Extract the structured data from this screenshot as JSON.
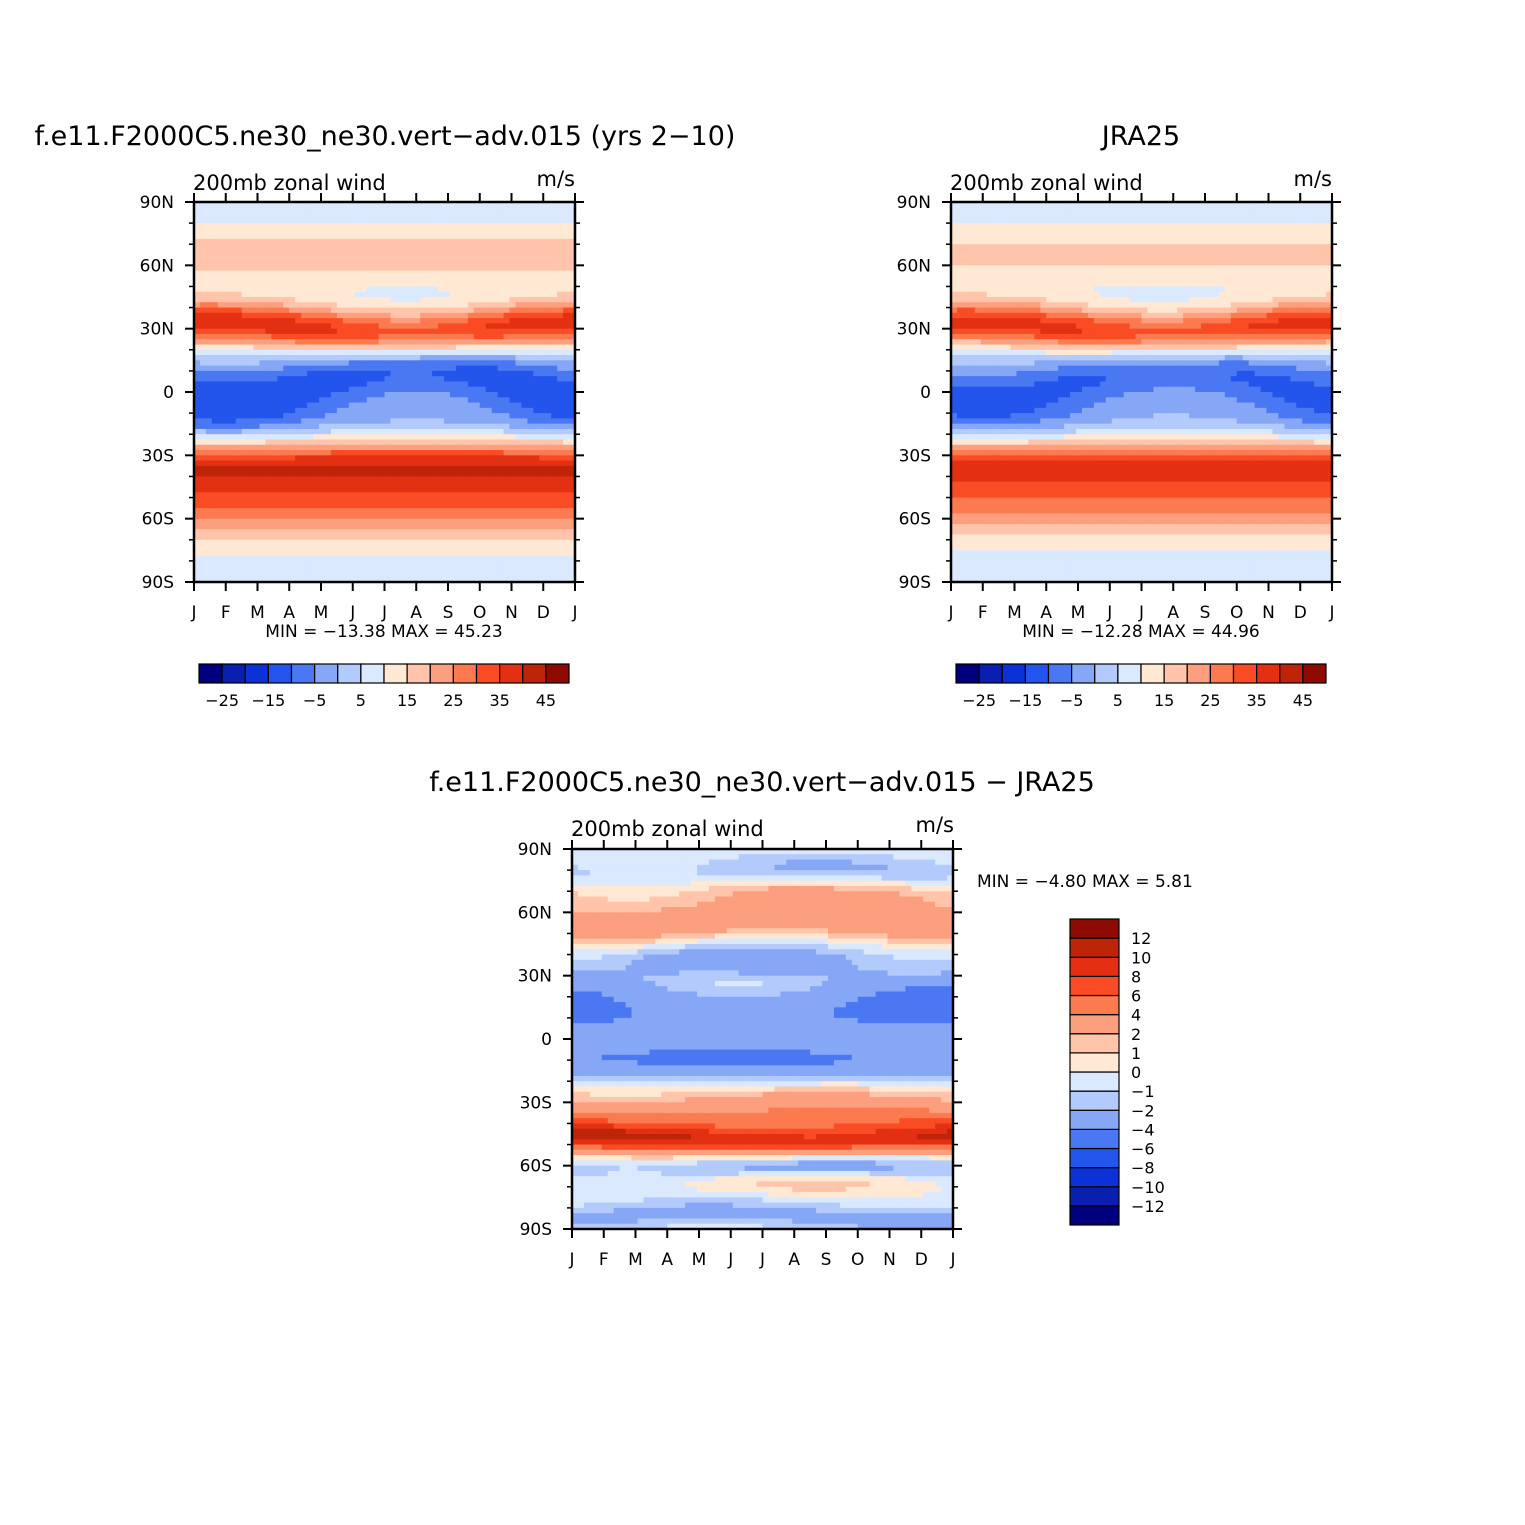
{
  "chart_data": [
    {
      "type": "heatmap",
      "title": "f.e11.F2000C5.ne30_ne30.vert−adv.015 (yrs 2−10)",
      "left_label": "200mb zonal wind",
      "right_label": "m/s",
      "x_ticks": [
        "J",
        "F",
        "M",
        "A",
        "M",
        "J",
        "J",
        "A",
        "S",
        "O",
        "N",
        "D",
        "J"
      ],
      "y_ticks": [
        "90N",
        "60N",
        "30N",
        "0",
        "30S",
        "60S",
        "90S"
      ],
      "ylim": [
        -90,
        90
      ],
      "min_max_text": "MIN = −13.38 MAX =    45.23",
      "min": -13.38,
      "max": 45.23,
      "colorbar": {
        "orientation": "horizontal",
        "labels": [
          "−25",
          "−15",
          "−5",
          "5",
          "15",
          "25",
          "35",
          "45"
        ],
        "levels": [
          -30,
          -25,
          -20,
          -15,
          -10,
          -5,
          0,
          5,
          10,
          15,
          20,
          25,
          30,
          35,
          40,
          45
        ],
        "colors": [
          "#00007f",
          "#0a1fb0",
          "#0a32d6",
          "#2354ec",
          "#4a78f2",
          "#86a6f6",
          "#b2cafc",
          "#dbe9ff",
          "#ffe8d4",
          "#ffc4aa",
          "#fc9f7e",
          "#fb7a4f",
          "#f94c24",
          "#e43012",
          "#bd2408",
          "#8f0a00"
        ]
      },
      "components": [
        {
          "amp": 33,
          "lat_center": 30,
          "lat_width": 11,
          "month_center": 0.5,
          "month_amp": 3
        },
        {
          "amp": 32,
          "lat_center": -35,
          "lat_width": 13
        },
        {
          "amp": 22,
          "lat_center": -55,
          "lat_width": 14
        },
        {
          "amp": -18,
          "lat_center": 5,
          "lat_width": 16,
          "month_center": 7,
          "month_amp": 8
        },
        {
          "amp": -6,
          "lat_center": -15,
          "lat_width": 10
        },
        {
          "amp": 12,
          "lat_center": 65,
          "lat_width": 16
        },
        {
          "amp": 3,
          "lat_center": -75,
          "lat_width": 10
        }
      ]
    },
    {
      "type": "heatmap",
      "title": "JRA25",
      "left_label": "200mb zonal wind",
      "right_label": "m/s",
      "x_ticks": [
        "J",
        "F",
        "M",
        "A",
        "M",
        "J",
        "J",
        "A",
        "S",
        "O",
        "N",
        "D",
        "J"
      ],
      "y_ticks": [
        "90N",
        "60N",
        "30N",
        "0",
        "30S",
        "60S",
        "90S"
      ],
      "ylim": [
        -90,
        90
      ],
      "min_max_text": "MIN = −12.28 MAX =    44.96",
      "min": -12.28,
      "max": 44.96,
      "colorbar": {
        "orientation": "horizontal",
        "labels": [
          "−25",
          "−15",
          "−5",
          "5",
          "15",
          "25",
          "35",
          "45"
        ],
        "levels": [
          -30,
          -25,
          -20,
          -15,
          -10,
          -5,
          0,
          5,
          10,
          15,
          20,
          25,
          30,
          35,
          40,
          45
        ],
        "colors": [
          "#00007f",
          "#0a1fb0",
          "#0a32d6",
          "#2354ec",
          "#4a78f2",
          "#86a6f6",
          "#b2cafc",
          "#dbe9ff",
          "#ffe8d4",
          "#ffc4aa",
          "#fc9f7e",
          "#fb7a4f",
          "#f94c24",
          "#e43012",
          "#bd2408",
          "#8f0a00"
        ]
      },
      "components": [
        {
          "amp": 32,
          "lat_center": 30,
          "lat_width": 11,
          "month_center": 0.5,
          "month_amp": 3
        },
        {
          "amp": 30,
          "lat_center": -35,
          "lat_width": 13
        },
        {
          "amp": 20,
          "lat_center": -55,
          "lat_width": 14
        },
        {
          "amp": -16,
          "lat_center": 5,
          "lat_width": 16,
          "month_center": 7,
          "month_amp": 8
        },
        {
          "amp": -5,
          "lat_center": -15,
          "lat_width": 10
        },
        {
          "amp": 11,
          "lat_center": 65,
          "lat_width": 16
        },
        {
          "amp": 3,
          "lat_center": -75,
          "lat_width": 10
        }
      ]
    },
    {
      "type": "heatmap",
      "title": "f.e11.F2000C5.ne30_ne30.vert−adv.015 − JRA25",
      "left_label": "200mb zonal wind",
      "right_label": "m/s",
      "x_ticks": [
        "J",
        "F",
        "M",
        "A",
        "M",
        "J",
        "J",
        "A",
        "S",
        "O",
        "N",
        "D",
        "J"
      ],
      "y_ticks": [
        "90N",
        "60N",
        "30N",
        "0",
        "30S",
        "60S",
        "90S"
      ],
      "ylim": [
        -90,
        90
      ],
      "min_max_text": "MIN =   −4.80 MAX =     5.81",
      "min": -4.8,
      "max": 5.81,
      "colorbar": {
        "orientation": "vertical",
        "labels": [
          "12",
          "10",
          "8",
          "6",
          "4",
          "2",
          "1",
          "0",
          "−1",
          "−2",
          "−4",
          "−6",
          "−8",
          "−10",
          "−12"
        ],
        "levels": [
          -12,
          -10,
          -8,
          -6,
          -4,
          -2,
          -1,
          0,
          1,
          2,
          4,
          6,
          8,
          10,
          12
        ],
        "colors": [
          "#00007f",
          "#0a1fb0",
          "#0a32d6",
          "#2354ec",
          "#4a78f2",
          "#86a6f6",
          "#b2cafc",
          "#dbe9ff",
          "#ffe8d4",
          "#ffc4aa",
          "#fc9f7e",
          "#fb7a4f",
          "#f94c24",
          "#e43012",
          "#bd2408",
          "#8f0a00"
        ]
      },
      "components": [
        {
          "amp": 2.3,
          "lat_center": 72,
          "lat_width": 9,
          "month_center": 3,
          "month_amp": 2
        },
        {
          "amp": -2.8,
          "lat_center": 78,
          "lat_width": 8,
          "month_center": 7.5,
          "month_amp": 2.5
        },
        {
          "amp": 3.4,
          "lat_center": 55,
          "lat_width": 10,
          "month_center": 7,
          "month_amp": 3
        },
        {
          "amp": -4.2,
          "lat_center": 32,
          "lat_width": 12,
          "month_center": 5,
          "month_amp": 3
        },
        {
          "amp": 2.3,
          "lat_center": 30,
          "lat_width": 8,
          "month_center": 11.5,
          "month_amp": 2
        },
        {
          "amp": -2.5,
          "lat_center": 15,
          "lat_width": 10,
          "month_center": 0.2,
          "month_amp": 0.8
        },
        {
          "amp": -4.8,
          "lat_center": 0,
          "lat_width": 12,
          "month_center": 10.8,
          "month_amp": 1.5
        },
        {
          "amp": 2,
          "lat_center": 0,
          "lat_width": 9,
          "month_center": 8.5,
          "month_amp": 1.2
        },
        {
          "amp": -2.5,
          "lat_center": -12,
          "lat_width": 8,
          "month_center": 0.5,
          "month_amp": 1
        },
        {
          "amp": 3.6,
          "lat_center": -35,
          "lat_width": 10,
          "month_center": 7.5,
          "month_amp": 2.5
        },
        {
          "amp": 5.2,
          "lat_center": -48,
          "lat_width": 6,
          "month_center": 1.2,
          "month_amp": 1.8
        },
        {
          "amp": 4,
          "lat_center": -46,
          "lat_width": 8,
          "month_center": 9,
          "month_amp": 2
        },
        {
          "amp": -3.2,
          "lat_center": -62,
          "lat_width": 7,
          "month_center": 7.5,
          "month_amp": 1.8
        },
        {
          "amp": 2.2,
          "lat_center": -66,
          "lat_width": 6,
          "month_center": 1.5,
          "month_amp": 1.3
        },
        {
          "amp": -2.4,
          "lat_center": -84,
          "lat_width": 7,
          "month_center": 4.5,
          "month_amp": 2.5
        }
      ]
    }
  ]
}
